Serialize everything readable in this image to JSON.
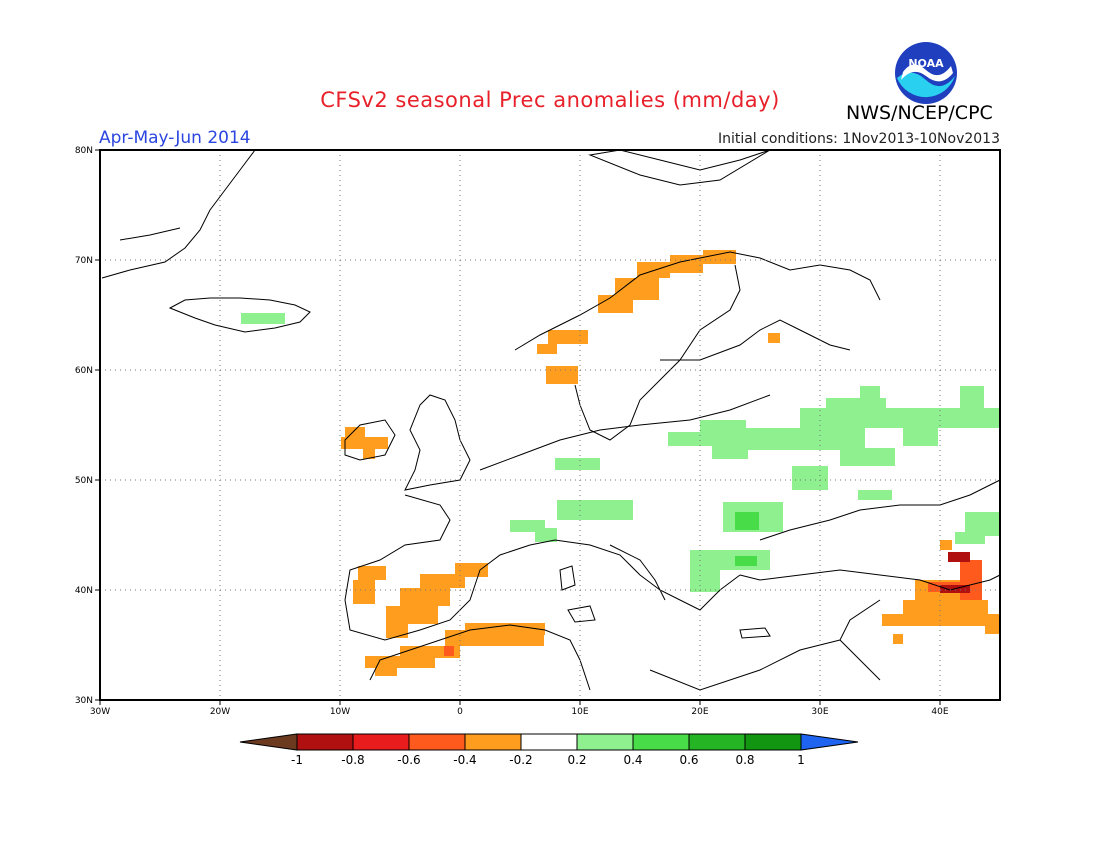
{
  "title": "CFSv2 seasonal Prec anomalies (mm/day)",
  "season": "Apr-May-Jun 2014",
  "initial_conditions": "Initial conditions: 1Nov2013-10Nov2013",
  "agency": "NWS/NCEP/CPC",
  "logo_text": "NOAA",
  "map": {
    "lon_ticks": [
      "30W",
      "20W",
      "10W",
      "0",
      "10E",
      "20E",
      "30E",
      "40E"
    ],
    "lat_ticks": [
      "80N",
      "70N",
      "60N",
      "50N",
      "40N",
      "30N"
    ],
    "lon_range": [
      -30,
      45
    ],
    "lat_range": [
      30,
      80
    ],
    "grid": "dotted"
  },
  "colorbar": {
    "labels": [
      "-1",
      "-0.8",
      "-0.6",
      "-0.4",
      "-0.2",
      "0.2",
      "0.4",
      "0.6",
      "0.8",
      "1"
    ],
    "colors": [
      "#6b3a1f",
      "#b01010",
      "#e81c1c",
      "#ff5a1e",
      "#ff9e1e",
      "#ffffff",
      "#8ef08e",
      "#48dc48",
      "#24b424",
      "#129612",
      "#1e64f0"
    ]
  },
  "anomaly_regions": [
    {
      "name": "Iceland",
      "level": "0.2 to 0.4",
      "color": "#8ef08e"
    },
    {
      "name": "Norway coast",
      "level": "-0.4 to -0.2",
      "color": "#ff9e1e"
    },
    {
      "name": "Ireland",
      "level": "-0.4 to -0.2",
      "color": "#ff9e1e"
    },
    {
      "name": "Iberia",
      "level": "-0.4 to -0.2",
      "color": "#ff9e1e"
    },
    {
      "name": "North Africa",
      "level": "-0.4 to -0.2",
      "color": "#ff9e1e"
    },
    {
      "name": "Eastern Europe",
      "level": "0.2 to 0.4",
      "color": "#8ef08e"
    },
    {
      "name": "Alps",
      "level": "0.2 to 0.4",
      "color": "#8ef08e"
    },
    {
      "name": "Romania",
      "level": "0.4 to 0.6",
      "color": "#48dc48"
    },
    {
      "name": "Turkey east",
      "level": "-0.8 to -0.4",
      "color": "#e81c1c"
    }
  ]
}
